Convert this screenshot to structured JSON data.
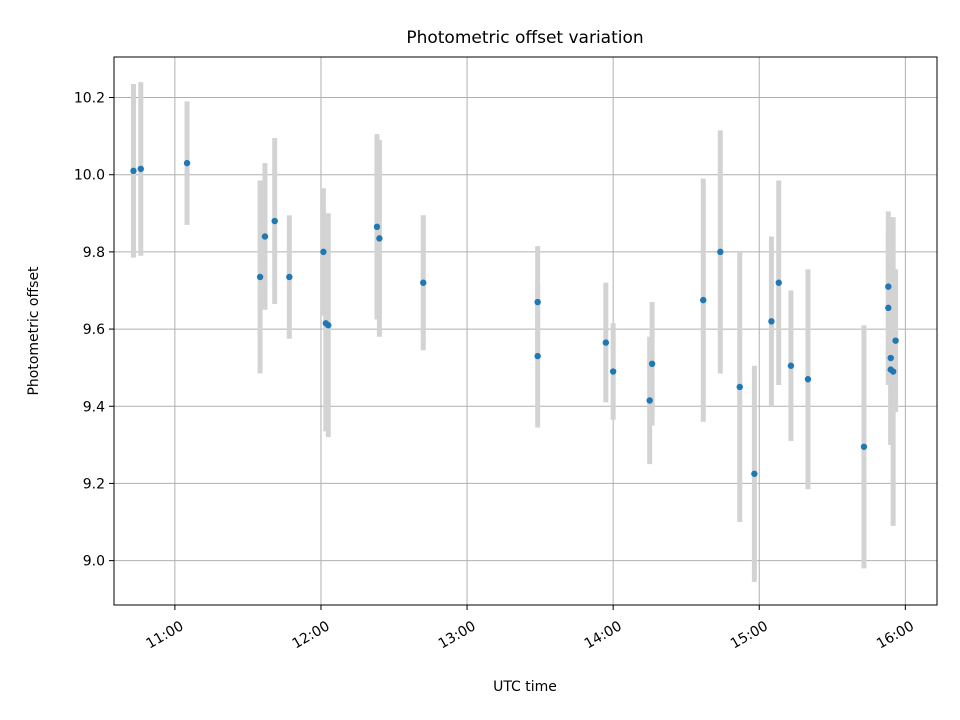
{
  "chart_data": {
    "type": "scatter",
    "title": "Photometric offset variation",
    "xlabel": "UTC time",
    "ylabel": "Photometric offset",
    "x_ticks": [
      "11:00",
      "12:00",
      "13:00",
      "14:00",
      "15:00",
      "16:00"
    ],
    "y_ticks": [
      "9.0",
      "9.2",
      "9.4",
      "9.6",
      "9.8",
      "10.0",
      "10.2"
    ],
    "xlim": [
      "10:35",
      "16:13"
    ],
    "ylim": [
      8.885,
      10.305
    ],
    "grid": true,
    "colors": {
      "points": "#1f77b4",
      "errorbars": "#d3d3d3",
      "grid": "#b0b0b0"
    },
    "series": [
      {
        "points": [
          {
            "x": "10:43",
            "y": 10.01,
            "err": 0.225
          },
          {
            "x": "10:46",
            "y": 10.015,
            "err": 0.225
          },
          {
            "x": "11:05",
            "y": 10.03,
            "err": 0.16
          },
          {
            "x": "11:35",
            "y": 9.735,
            "err": 0.25
          },
          {
            "x": "11:37",
            "y": 9.84,
            "err": 0.19
          },
          {
            "x": "11:41",
            "y": 9.88,
            "err": 0.215
          },
          {
            "x": "11:47",
            "y": 9.735,
            "err": 0.16
          },
          {
            "x": "12:01",
            "y": 9.8,
            "err": 0.165
          },
          {
            "x": "12:02",
            "y": 9.615,
            "err": 0.28
          },
          {
            "x": "12:03",
            "y": 9.61,
            "err": 0.29
          },
          {
            "x": "12:23",
            "y": 9.865,
            "err": 0.24
          },
          {
            "x": "12:24",
            "y": 9.835,
            "err": 0.255
          },
          {
            "x": "12:42",
            "y": 9.72,
            "err": 0.175
          },
          {
            "x": "13:29",
            "y": 9.67,
            "err": 0.145
          },
          {
            "x": "13:29",
            "y": 9.53,
            "err": 0.185
          },
          {
            "x": "13:57",
            "y": 9.565,
            "err": 0.155
          },
          {
            "x": "14:00",
            "y": 9.49,
            "err": 0.125
          },
          {
            "x": "14:15",
            "y": 9.415,
            "err": 0.165
          },
          {
            "x": "14:16",
            "y": 9.51,
            "err": 0.16
          },
          {
            "x": "14:37",
            "y": 9.675,
            "err": 0.315
          },
          {
            "x": "14:44",
            "y": 9.8,
            "err": 0.315
          },
          {
            "x": "14:52",
            "y": 9.45,
            "err": 0.35
          },
          {
            "x": "14:58",
            "y": 9.225,
            "err": 0.28
          },
          {
            "x": "15:05",
            "y": 9.62,
            "err": 0.22
          },
          {
            "x": "15:08",
            "y": 9.72,
            "err": 0.265
          },
          {
            "x": "15:13",
            "y": 9.505,
            "err": 0.195
          },
          {
            "x": "15:20",
            "y": 9.47,
            "err": 0.285
          },
          {
            "x": "15:43",
            "y": 9.295,
            "err": 0.315
          },
          {
            "x": "15:53",
            "y": 9.71,
            "err": 0.195
          },
          {
            "x": "15:53",
            "y": 9.655,
            "err": 0.2
          },
          {
            "x": "15:54",
            "y": 9.525,
            "err": 0.225
          },
          {
            "x": "15:54",
            "y": 9.495,
            "err": 0.195
          },
          {
            "x": "15:55",
            "y": 9.49,
            "err": 0.4
          },
          {
            "x": "15:56",
            "y": 9.57,
            "err": 0.185
          }
        ]
      }
    ]
  }
}
